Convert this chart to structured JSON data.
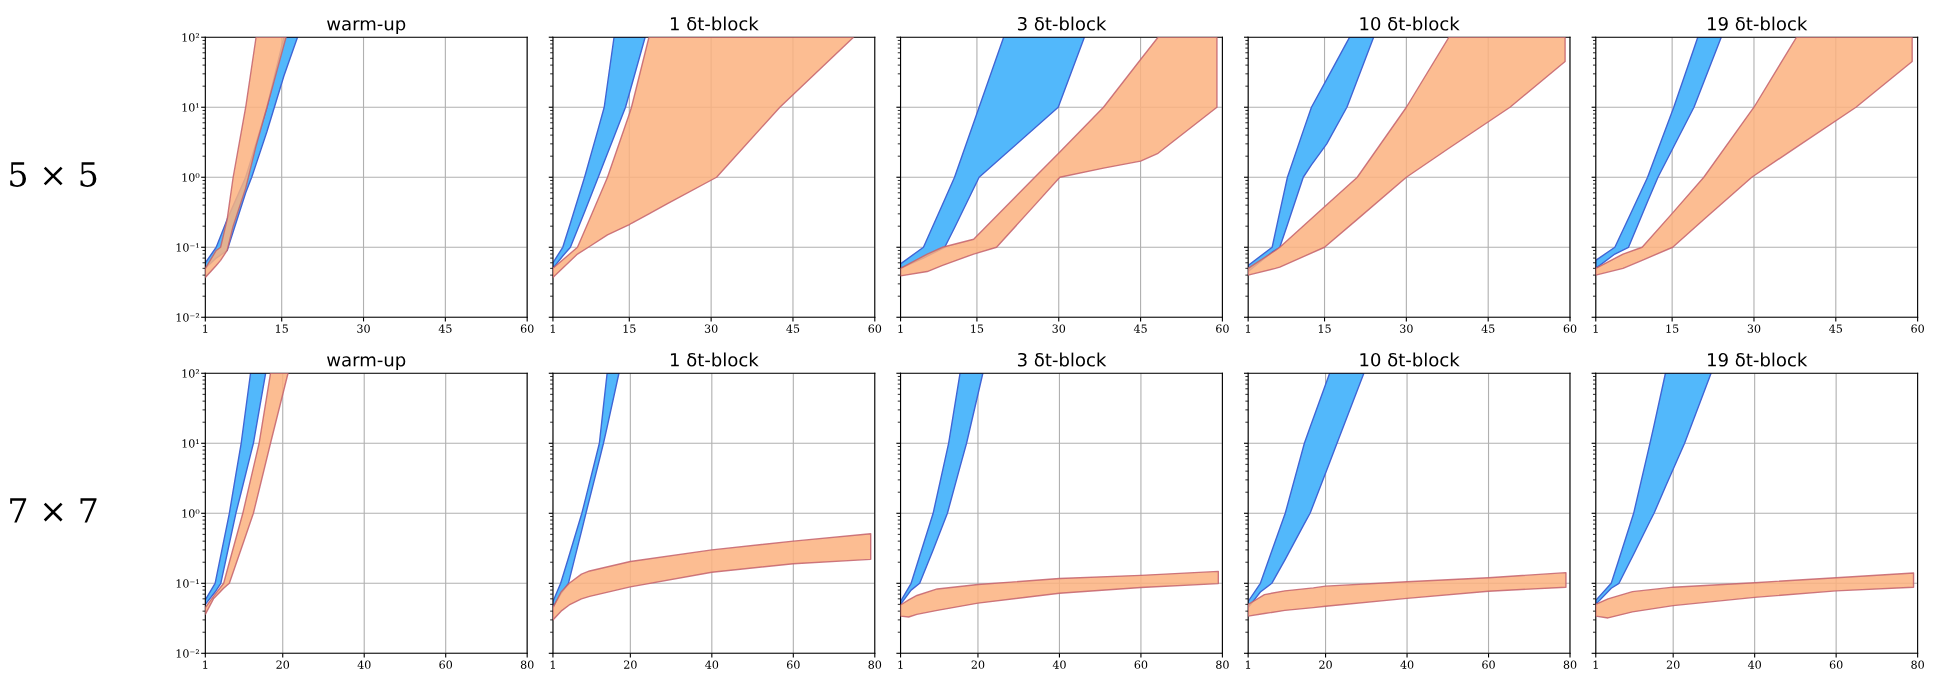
{
  "chart_data": [
    {
      "type": "area",
      "title": "warm-up",
      "ylabel": "5 × 5",
      "log": true,
      "grid": true,
      "xlim": [
        1,
        60
      ],
      "xticks": [
        1,
        15,
        30,
        45,
        60
      ],
      "ylim": [
        0.01,
        100
      ],
      "yticks": [
        {
          "value": 0.01,
          "label": "10⁻²"
        },
        {
          "value": 0.1,
          "label": "10⁻¹"
        },
        {
          "value": 1,
          "label": "10⁰"
        },
        {
          "value": 10,
          "label": "10¹"
        },
        {
          "value": 100,
          "label": "10²"
        }
      ],
      "series": [
        {
          "color": "#52b8fb",
          "x": [
            1,
            3,
            5,
            8.4,
            9.5,
            12.3,
            15.4,
            17.9
          ],
          "values": [
            null,
            null,
            null,
            null,
            null,
            null,
            null,
            null
          ],
          "upper": [
            0.06,
            0.1,
            0.25,
            1,
            1.9,
            10,
            100,
            100
          ],
          "lower": [
            0.05,
            0.07,
            0.09,
            0.6,
            1,
            4.5,
            28,
            100
          ]
        },
        {
          "color": "#fbb27f",
          "x": [
            1,
            3,
            3.8,
            5,
            6.1,
            8.4,
            10.3,
            12.3,
            15.8
          ],
          "values": [
            null,
            null,
            null,
            null,
            null,
            null,
            null,
            null,
            null
          ],
          "upper": [
            0.05,
            0.09,
            0.1,
            0.25,
            1,
            10,
            100,
            100,
            100
          ],
          "lower": [
            0.037,
            0.055,
            0.065,
            0.09,
            0.2,
            0.7,
            2.8,
            10,
            100
          ]
        }
      ]
    },
    {
      "type": "area",
      "title": "1 δt-block",
      "log": true,
      "grid": true,
      "tick_labels": "x",
      "xlim": [
        1,
        60
      ],
      "xticks": [
        1,
        15,
        30,
        45,
        60
      ],
      "ylim": [
        0.01,
        100
      ],
      "yticks": [
        {
          "value": 0.01,
          "label": null
        },
        {
          "value": 0.1,
          "label": null
        },
        {
          "value": 1,
          "label": null
        },
        {
          "value": 10,
          "label": null
        },
        {
          "value": 100,
          "label": null
        }
      ],
      "series": [
        {
          "color": "#52b8fb",
          "x": [
            1,
            2.8,
            4.2,
            6.8,
            9.3,
            10.4,
            12.2,
            14.3,
            17.9
          ],
          "values": [
            null,
            null,
            null,
            null,
            null,
            null,
            null,
            null,
            null
          ],
          "upper": [
            0.06,
            0.1,
            0.22,
            1,
            4.9,
            10,
            100,
            100,
            100
          ],
          "lower": [
            0.05,
            0.075,
            0.1,
            0.32,
            1,
            1.66,
            3.8,
            10,
            100
          ]
        },
        {
          "color": "#fbb27f",
          "x": [
            1,
            5.5,
            7.5,
            11,
            15,
            15.4,
            18.6,
            22,
            31,
            42.6,
            56.1
          ],
          "values": [
            null,
            null,
            null,
            null,
            null,
            null,
            null,
            null,
            null,
            null,
            null
          ],
          "upper": [
            0.05,
            0.1,
            0.23,
            1,
            8,
            10,
            100,
            100,
            100,
            100,
            100
          ],
          "lower": [
            0.037,
            0.08,
            0.1,
            0.15,
            0.21,
            0.22,
            0.3,
            0.42,
            1,
            10,
            100
          ]
        }
      ]
    },
    {
      "type": "area",
      "title": "3 δt-block",
      "log": true,
      "grid": true,
      "tick_labels": "x",
      "xlim": [
        1,
        60
      ],
      "xticks": [
        1,
        15,
        30,
        45,
        60
      ],
      "ylim": [
        0.01,
        100
      ],
      "yticks": [
        {
          "value": 0.01,
          "label": null
        },
        {
          "value": 0.1,
          "label": null
        },
        {
          "value": 1,
          "label": null
        },
        {
          "value": 10,
          "label": null
        },
        {
          "value": 100,
          "label": null
        }
      ],
      "series": [
        {
          "color": "#52b8fb",
          "x": [
            1,
            5.2,
            9.1,
            10.9,
            15.4,
            19.9,
            29.9,
            34.7
          ],
          "values": [
            null,
            null,
            null,
            null,
            null,
            null,
            null,
            null
          ],
          "upper": [
            0.058,
            0.1,
            0.48,
            1,
            10,
            100,
            100,
            100
          ],
          "lower": [
            0.05,
            0.07,
            0.1,
            0.19,
            1,
            2.04,
            10,
            100
          ]
        },
        {
          "color": "#fbb27f",
          "x": [
            1,
            5.9,
            8.7,
            14.4,
            18.6,
            25.6,
            30.2,
            38.2,
            45,
            48.2,
            59
          ],
          "values": [
            null,
            null,
            null,
            null,
            null,
            null,
            null,
            null,
            null,
            null,
            null
          ],
          "upper": [
            0.05,
            0.08,
            0.1,
            0.13,
            0.28,
            1,
            2.3,
            10,
            48,
            100,
            100
          ],
          "lower": [
            0.039,
            0.045,
            0.055,
            0.08,
            0.1,
            0.4,
            1,
            1.35,
            1.7,
            2.2,
            10
          ]
        }
      ]
    },
    {
      "type": "area",
      "title": "10 δt-block",
      "log": true,
      "grid": true,
      "tick_labels": "x",
      "xlim": [
        1,
        60
      ],
      "xticks": [
        1,
        15,
        30,
        45,
        60
      ],
      "ylim": [
        0.01,
        100
      ],
      "yticks": [
        {
          "value": 0.01,
          "label": null
        },
        {
          "value": 0.1,
          "label": null
        },
        {
          "value": 1,
          "label": null
        },
        {
          "value": 10,
          "label": null
        },
        {
          "value": 100,
          "label": null
        }
      ],
      "series": [
        {
          "color": "#52b8fb",
          "x": [
            1,
            5.4,
            6.8,
            8.2,
            11.1,
            12.6,
            15.4,
            19.1,
            19.6,
            24
          ],
          "values": [
            null,
            null,
            null,
            null,
            null,
            null,
            null,
            null,
            null,
            null
          ],
          "upper": [
            0.055,
            0.1,
            0.32,
            1,
            4.6,
            10,
            25,
            85,
            100,
            100
          ],
          "lower": [
            0.045,
            0.085,
            0.1,
            0.21,
            1,
            1.5,
            3,
            10,
            12.6,
            100
          ]
        },
        {
          "color": "#fbb27f",
          "x": [
            1,
            6,
            6.8,
            15,
            21,
            30,
            37.8,
            49,
            59.1
          ],
          "values": [
            null,
            null,
            null,
            null,
            null,
            null,
            null,
            null,
            null
          ],
          "upper": [
            0.05,
            0.09,
            0.1,
            0.38,
            1,
            10,
            100,
            100,
            100
          ],
          "lower": [
            0.04,
            0.05,
            0.052,
            0.1,
            0.25,
            1,
            2.6,
            10,
            45
          ]
        }
      ]
    },
    {
      "type": "area",
      "title": "19 δt-block",
      "log": true,
      "grid": true,
      "tick_labels": "x",
      "xlim": [
        1,
        60
      ],
      "xticks": [
        1,
        15,
        30,
        45,
        60
      ],
      "ylim": [
        0.01,
        100
      ],
      "yticks": [
        {
          "value": 0.01,
          "label": null
        },
        {
          "value": 0.1,
          "label": null
        },
        {
          "value": 1,
          "label": null
        },
        {
          "value": 10,
          "label": null
        },
        {
          "value": 100,
          "label": null
        }
      ],
      "series": [
        {
          "color": "#52b8fb",
          "x": [
            1,
            4.5,
            7,
            10.5,
            12.4,
            15.3,
            19,
            19.7,
            24
          ],
          "values": [
            null,
            null,
            null,
            null,
            null,
            null,
            null,
            null,
            null
          ],
          "upper": [
            0.065,
            0.1,
            0.26,
            1,
            2.5,
            10,
            69,
            100,
            100
          ],
          "lower": [
            0.05,
            0.08,
            0.1,
            0.45,
            1,
            2.75,
            10,
            13.8,
            100
          ]
        },
        {
          "color": "#fbb27f",
          "x": [
            1,
            6,
            9.5,
            15.1,
            20.8,
            29.6,
            30,
            37.8,
            48.7,
            59
          ],
          "values": [
            null,
            null,
            null,
            null,
            null,
            null,
            null,
            null,
            null,
            null
          ],
          "upper": [
            0.05,
            0.08,
            0.1,
            0.31,
            1,
            9.1,
            10,
            100,
            100,
            100
          ],
          "lower": [
            0.04,
            0.05,
            0.065,
            0.1,
            0.25,
            1,
            1.05,
            2.7,
            10,
            45
          ]
        }
      ]
    },
    {
      "type": "area",
      "title": "warm-up",
      "ylabel": "7 × 7",
      "log": true,
      "grid": true,
      "xlim": [
        1,
        80
      ],
      "xticks": [
        1,
        20,
        40,
        60,
        80
      ],
      "ylim": [
        0.01,
        100
      ],
      "yticks": [
        {
          "value": 0.01,
          "label": "10⁻²"
        },
        {
          "value": 0.1,
          "label": "10⁻¹"
        },
        {
          "value": 1,
          "label": "10⁰"
        },
        {
          "value": 10,
          "label": "10¹"
        },
        {
          "value": 100,
          "label": "10²"
        }
      ],
      "series": [
        {
          "color": "#52b8fb",
          "x": [
            1,
            3.4,
            4.8,
            6.9,
            8.5,
            9.8,
            12.1,
            12.8,
            15.8
          ],
          "values": [
            null,
            null,
            null,
            null,
            null,
            null,
            null,
            null,
            null
          ],
          "upper": [
            0.058,
            0.1,
            0.25,
            1,
            3.6,
            10,
            100,
            100,
            100
          ],
          "lower": [
            0.05,
            0.075,
            0.1,
            0.37,
            1,
            2,
            6.9,
            10,
            100
          ]
        },
        {
          "color": "#fbb27f",
          "x": [
            1,
            3,
            5.5,
            6.9,
            10.2,
            12.8,
            14.2,
            17,
            21.3
          ],
          "values": [
            null,
            null,
            null,
            null,
            null,
            null,
            null,
            null,
            null
          ],
          "upper": [
            0.045,
            0.065,
            0.1,
            0.2,
            1,
            4.5,
            10,
            100,
            100
          ],
          "lower": [
            0.036,
            0.06,
            0.085,
            0.1,
            0.36,
            1,
            2.15,
            10,
            100
          ]
        }
      ]
    },
    {
      "type": "area",
      "title": "1 δt-block",
      "log": true,
      "grid": true,
      "tick_labels": "x",
      "xlim": [
        1,
        80
      ],
      "xticks": [
        1,
        20,
        40,
        60,
        80
      ],
      "ylim": [
        0.01,
        100
      ],
      "yticks": [
        {
          "value": 0.01,
          "label": null
        },
        {
          "value": 0.1,
          "label": null
        },
        {
          "value": 1,
          "label": null
        },
        {
          "value": 10,
          "label": null
        },
        {
          "value": 100,
          "label": null
        }
      ],
      "series": [
        {
          "color": "#52b8fb",
          "x": [
            1,
            2.9,
            4.8,
            8.1,
            9.1,
            12.4,
            13.4,
            14.3,
            17.2
          ],
          "values": [
            null,
            null,
            null,
            null,
            null,
            null,
            null,
            null,
            null
          ],
          "upper": [
            0.055,
            0.1,
            0.23,
            1,
            1.7,
            10,
            34,
            100,
            100
          ],
          "lower": [
            0.045,
            0.07,
            0.1,
            0.58,
            1,
            5.8,
            10,
            17,
            100
          ]
        },
        {
          "color": "#fbb27f",
          "x": [
            1,
            3,
            5,
            8,
            10,
            20,
            40,
            60,
            79
          ],
          "values": [
            null,
            null,
            null,
            null,
            null,
            null,
            null,
            null,
            null
          ],
          "upper": [
            0.045,
            0.075,
            0.1,
            0.135,
            0.15,
            0.205,
            0.3,
            0.4,
            0.51
          ],
          "lower": [
            0.03,
            0.04,
            0.049,
            0.06,
            0.065,
            0.089,
            0.144,
            0.19,
            0.22
          ]
        }
      ]
    },
    {
      "type": "area",
      "title": "3 δt-block",
      "log": true,
      "grid": true,
      "tick_labels": "x",
      "xlim": [
        1,
        80
      ],
      "xticks": [
        1,
        20,
        40,
        60,
        80
      ],
      "ylim": [
        0.01,
        100
      ],
      "yticks": [
        {
          "value": 0.01,
          "label": null
        },
        {
          "value": 0.1,
          "label": null
        },
        {
          "value": 1,
          "label": null
        },
        {
          "value": 10,
          "label": null
        },
        {
          "value": 100,
          "label": null
        }
      ],
      "series": [
        {
          "color": "#52b8fb",
          "x": [
            1,
            3.6,
            5.7,
            9,
            12.5,
            12.8,
            15.6,
            17.2,
            21.2
          ],
          "values": [
            null,
            null,
            null,
            null,
            null,
            null,
            null,
            null,
            null
          ],
          "upper": [
            0.055,
            0.1,
            0.245,
            1,
            8.3,
            10,
            100,
            100,
            100
          ],
          "lower": [
            0.05,
            0.08,
            0.1,
            0.3,
            1,
            1.16,
            4.6,
            10,
            100
          ]
        },
        {
          "color": "#fbb27f",
          "x": [
            1,
            3,
            5,
            10,
            20,
            40,
            60,
            79
          ],
          "values": [
            null,
            null,
            null,
            null,
            null,
            null,
            null,
            null
          ],
          "upper": [
            0.049,
            0.058,
            0.067,
            0.083,
            0.096,
            0.117,
            0.13,
            0.148
          ],
          "lower": [
            0.034,
            0.033,
            0.036,
            0.041,
            0.052,
            0.072,
            0.087,
            0.099
          ]
        }
      ]
    },
    {
      "type": "area",
      "title": "10 δt-block",
      "log": true,
      "grid": true,
      "tick_labels": "x",
      "xlim": [
        1,
        80
      ],
      "xticks": [
        1,
        20,
        40,
        60,
        80
      ],
      "ylim": [
        0.01,
        100
      ],
      "yticks": [
        {
          "value": 0.01,
          "label": null
        },
        {
          "value": 0.1,
          "label": null
        },
        {
          "value": 1,
          "label": null
        },
        {
          "value": 10,
          "label": null
        },
        {
          "value": 100,
          "label": null
        }
      ],
      "series": [
        {
          "color": "#52b8fb",
          "x": [
            1,
            4,
            6.8,
            10.1,
            14.8,
            16.2,
            21,
            22.8,
            29.4
          ],
          "values": [
            null,
            null,
            null,
            null,
            null,
            null,
            null,
            null,
            null
          ],
          "upper": [
            0.055,
            0.1,
            0.29,
            1,
            10,
            17,
            100,
            100,
            100
          ],
          "lower": [
            0.045,
            0.075,
            0.1,
            0.22,
            0.71,
            1,
            5.3,
            10,
            100
          ]
        },
        {
          "color": "#fbb27f",
          "x": [
            1,
            5,
            10,
            17,
            20,
            40,
            60,
            79
          ],
          "values": [
            null,
            null,
            null,
            null,
            null,
            null,
            null,
            null
          ],
          "upper": [
            0.05,
            0.069,
            0.078,
            0.086,
            0.091,
            0.105,
            0.12,
            0.142
          ],
          "lower": [
            0.034,
            0.037,
            0.041,
            0.045,
            0.047,
            0.061,
            0.077,
            0.088
          ]
        }
      ]
    },
    {
      "type": "area",
      "title": "19 δt-block",
      "log": true,
      "grid": true,
      "tick_labels": "x",
      "xlim": [
        1,
        80
      ],
      "xticks": [
        1,
        20,
        40,
        60,
        80
      ],
      "ylim": [
        0.01,
        100
      ],
      "yticks": [
        {
          "value": 0.01,
          "label": null
        },
        {
          "value": 0.1,
          "label": null
        },
        {
          "value": 1,
          "label": null
        },
        {
          "value": 10,
          "label": null
        },
        {
          "value": 100,
          "label": null
        }
      ],
      "series": [
        {
          "color": "#52b8fb",
          "x": [
            1,
            4.8,
            6.7,
            10.3,
            14.3,
            15.3,
            18.1,
            22.8,
            29.3
          ],
          "values": [
            null,
            null,
            null,
            null,
            null,
            null,
            null,
            null,
            null
          ],
          "upper": [
            0.057,
            0.1,
            0.22,
            1,
            10,
            18,
            100,
            100,
            100
          ],
          "lower": [
            0.05,
            0.085,
            0.1,
            0.26,
            0.77,
            1,
            2.4,
            10,
            100
          ]
        },
        {
          "color": "#fbb27f",
          "x": [
            1,
            4,
            10,
            20,
            40,
            60,
            79
          ],
          "values": [
            null,
            null,
            null,
            null,
            null,
            null,
            null
          ],
          "upper": [
            0.05,
            0.06,
            0.076,
            0.088,
            0.102,
            0.12,
            0.14
          ],
          "lower": [
            0.034,
            0.032,
            0.039,
            0.048,
            0.063,
            0.078,
            0.088
          ]
        }
      ]
    }
  ]
}
